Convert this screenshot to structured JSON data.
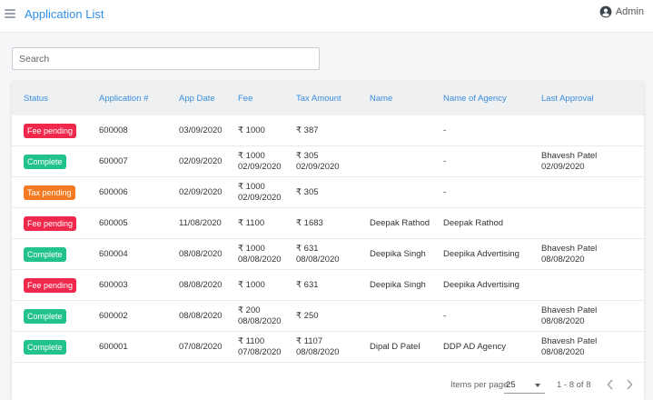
{
  "header": {
    "title": "Application List",
    "user": "Admin"
  },
  "search": {
    "placeholder": "Search",
    "value": ""
  },
  "columns": [
    "Status",
    "Application #",
    "App Date",
    "Fee",
    "Tax Amount",
    "Name",
    "Name of Agency",
    "Last Approval"
  ],
  "status_colors": {
    "Fee pending": "#f0284c",
    "Complete": "#22c28f",
    "Tax pending": "#f47b22"
  },
  "rows": [
    {
      "status": "Fee pending",
      "app_no": "600008",
      "app_date": "03/09/2020",
      "fee": "₹ 1000",
      "fee_date": "",
      "tax": "₹ 387",
      "tax_date": "",
      "name": "",
      "agency": "-",
      "approval_name": "",
      "approval_date": ""
    },
    {
      "status": "Complete",
      "app_no": "600007",
      "app_date": "02/09/2020",
      "fee": "₹ 1000",
      "fee_date": "02/09/2020",
      "tax": "₹ 305",
      "tax_date": "02/09/2020",
      "name": "",
      "agency": "-",
      "approval_name": "Bhavesh Patel",
      "approval_date": "02/09/2020"
    },
    {
      "status": "Tax pending",
      "app_no": "600006",
      "app_date": "02/09/2020",
      "fee": "₹ 1000",
      "fee_date": "02/09/2020",
      "tax": "₹ 305",
      "tax_date": "",
      "name": "",
      "agency": "-",
      "approval_name": "",
      "approval_date": ""
    },
    {
      "status": "Fee pending",
      "app_no": "600005",
      "app_date": "11/08/2020",
      "fee": "₹ 1100",
      "fee_date": "",
      "tax": "₹ 1683",
      "tax_date": "",
      "name": "Deepak Rathod",
      "agency": "Deepak Rathod",
      "approval_name": "",
      "approval_date": ""
    },
    {
      "status": "Complete",
      "app_no": "600004",
      "app_date": "08/08/2020",
      "fee": "₹ 1000",
      "fee_date": "08/08/2020",
      "tax": "₹ 631",
      "tax_date": "08/08/2020",
      "name": "Deepika Singh",
      "agency": "Deepika Advertising",
      "approval_name": "Bhavesh Patel",
      "approval_date": "08/08/2020"
    },
    {
      "status": "Fee pending",
      "app_no": "600003",
      "app_date": "08/08/2020",
      "fee": "₹ 1000",
      "fee_date": "",
      "tax": "₹ 631",
      "tax_date": "",
      "name": "Deepika Singh",
      "agency": "Deepika Advertising",
      "approval_name": "",
      "approval_date": ""
    },
    {
      "status": "Complete",
      "app_no": "600002",
      "app_date": "08/08/2020",
      "fee": "₹ 200",
      "fee_date": "08/08/2020",
      "tax": "₹ 250",
      "tax_date": "",
      "name": "",
      "agency": "-",
      "approval_name": "Bhavesh Patel",
      "approval_date": "08/08/2020"
    },
    {
      "status": "Complete",
      "app_no": "600001",
      "app_date": "07/08/2020",
      "fee": "₹ 1100",
      "fee_date": "07/08/2020",
      "tax": "₹ 1107",
      "tax_date": "08/08/2020",
      "name": "Dipal D Patel",
      "agency": "DDP AD Agency",
      "approval_name": "Bhavesh Patel",
      "approval_date": "08/08/2020"
    }
  ],
  "pagination": {
    "items_per_page_label": "Items per page:",
    "items_per_page": "25",
    "range": "1 - 8 of 8"
  }
}
